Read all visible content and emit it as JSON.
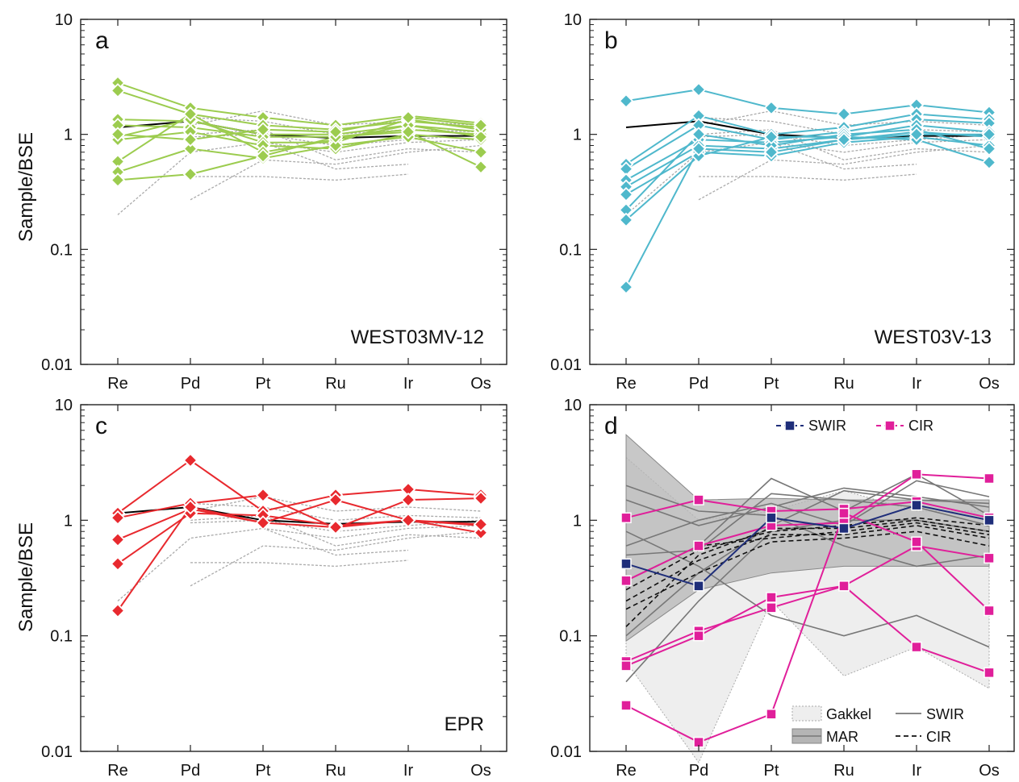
{
  "figure": {
    "y_axis_label": "Sample/BSE",
    "x_categories": [
      "Re",
      "Pd",
      "Pt",
      "Ru",
      "Ir",
      "Os"
    ],
    "y_tick_labels": [
      "10",
      "1",
      "0.1",
      "0.01"
    ]
  },
  "colors": {
    "a": "#9ccc4f",
    "b": "#4fb8cc",
    "c": "#e8292e",
    "swir": "#1f2e7a",
    "cir": "#e01f9a",
    "reference_grey": "#aaaaaa",
    "bse_line": "#000000"
  },
  "chart_data": [
    {
      "panel": "a",
      "letter": "a",
      "label": "WEST03MV-12",
      "type": "line",
      "x": [
        "Re",
        "Pd",
        "Pt",
        "Ru",
        "Ir",
        "Os"
      ],
      "yscale": "log",
      "ylim": [
        0.01,
        10
      ],
      "reference_line": [
        1.15,
        1.3,
        1.0,
        0.93,
        0.97,
        0.97
      ],
      "grey_reference": [
        [
          0.2,
          0.7,
          0.85,
          0.7,
          0.85,
          0.9
        ],
        [
          null,
          0.27,
          0.6,
          0.55,
          0.7,
          0.8
        ],
        [
          null,
          1.2,
          1.6,
          1.2,
          1.3,
          1.2
        ],
        [
          null,
          1.4,
          1.3,
          1.0,
          1.1,
          1.05
        ],
        [
          null,
          0.95,
          1.0,
          0.8,
          0.9,
          1.0
        ],
        [
          null,
          0.43,
          0.43,
          0.4,
          0.45,
          null
        ],
        [
          null,
          1.0,
          1.1,
          0.6,
          0.75,
          0.7
        ],
        [
          null,
          null,
          0.85,
          0.5,
          0.55,
          null
        ]
      ],
      "series": [
        {
          "values": [
            2.8,
            1.7,
            1.4,
            1.2,
            1.45,
            1.25
          ]
        },
        {
          "values": [
            2.4,
            1.5,
            1.2,
            1.1,
            1.3,
            1.15
          ]
        },
        {
          "values": [
            1.35,
            1.3,
            1.0,
            1.0,
            1.2,
            1.05
          ]
        },
        {
          "values": [
            1.2,
            1.15,
            0.95,
            0.95,
            1.1,
            1.0
          ]
        },
        {
          "values": [
            0.95,
            1.35,
            0.85,
            0.85,
            1.35,
            1.1
          ]
        },
        {
          "values": [
            0.9,
            1.05,
            0.8,
            0.75,
            1.0,
            0.9
          ]
        },
        {
          "values": [
            0.58,
            1.5,
            0.7,
            0.9,
            1.2,
            0.95
          ]
        },
        {
          "values": [
            0.47,
            0.75,
            0.62,
            0.8,
            0.95,
            0.7
          ]
        },
        {
          "values": [
            0.4,
            0.45,
            0.65,
            0.95,
            1.05,
            0.52
          ]
        },
        {
          "values": [
            1.0,
            0.9,
            1.1,
            1.05,
            1.4,
            1.2
          ]
        }
      ]
    },
    {
      "panel": "b",
      "letter": "b",
      "label": "WEST03V-13",
      "type": "line",
      "x": [
        "Re",
        "Pd",
        "Pt",
        "Ru",
        "Ir",
        "Os"
      ],
      "yscale": "log",
      "ylim": [
        0.01,
        10
      ],
      "reference_line": [
        1.15,
        1.3,
        1.0,
        0.93,
        0.97,
        0.97
      ],
      "grey_reference": [
        [
          0.2,
          0.7,
          0.85,
          0.7,
          0.85,
          0.9
        ],
        [
          null,
          0.27,
          0.6,
          0.55,
          0.7,
          0.8
        ],
        [
          null,
          1.2,
          1.6,
          1.2,
          1.3,
          1.2
        ],
        [
          null,
          1.4,
          1.3,
          1.0,
          1.1,
          1.05
        ],
        [
          null,
          0.95,
          1.0,
          0.8,
          0.9,
          1.0
        ],
        [
          null,
          0.43,
          0.43,
          0.4,
          0.45,
          null
        ],
        [
          null,
          1.0,
          1.1,
          0.6,
          0.75,
          0.7
        ],
        [
          null,
          null,
          0.85,
          0.5,
          0.55,
          null
        ]
      ],
      "series": [
        {
          "values": [
            1.95,
            2.45,
            1.7,
            1.5,
            1.8,
            1.55
          ]
        },
        {
          "values": [
            0.55,
            1.45,
            1.0,
            1.15,
            1.5,
            1.35
          ]
        },
        {
          "values": [
            0.5,
            1.2,
            0.9,
            1.05,
            1.35,
            1.25
          ]
        },
        {
          "values": [
            0.4,
            0.9,
            0.85,
            0.95,
            1.2,
            1.05
          ]
        },
        {
          "values": [
            0.35,
            0.8,
            0.75,
            0.9,
            1.05,
            0.95
          ]
        },
        {
          "values": [
            0.3,
            0.7,
            0.65,
            0.85,
            0.95,
            0.8
          ]
        },
        {
          "values": [
            0.22,
            1.0,
            0.8,
            1.0,
            1.1,
            0.75
          ]
        },
        {
          "values": [
            0.18,
            0.65,
            0.95,
            0.95,
            0.9,
            0.57
          ]
        },
        {
          "values": [
            0.047,
            0.75,
            0.7,
            0.9,
            1.0,
            1.0
          ]
        }
      ]
    },
    {
      "panel": "c",
      "letter": "c",
      "label": "EPR",
      "type": "line",
      "x": [
        "Re",
        "Pd",
        "Pt",
        "Ru",
        "Ir",
        "Os"
      ],
      "yscale": "log",
      "ylim": [
        0.01,
        10
      ],
      "reference_line": [
        1.15,
        1.3,
        1.0,
        0.93,
        0.97,
        0.97
      ],
      "grey_reference": [
        [
          0.2,
          0.7,
          0.85,
          0.7,
          0.85,
          0.9
        ],
        [
          null,
          0.27,
          0.6,
          0.55,
          0.7,
          0.8
        ],
        [
          null,
          1.2,
          1.6,
          1.2,
          1.3,
          1.2
        ],
        [
          null,
          1.4,
          1.3,
          1.0,
          1.1,
          1.05
        ],
        [
          null,
          0.95,
          1.0,
          0.8,
          0.9,
          1.0
        ],
        [
          null,
          0.43,
          0.43,
          0.4,
          0.45,
          null
        ],
        [
          null,
          1.0,
          1.1,
          0.6,
          0.75,
          0.7
        ],
        [
          null,
          null,
          0.85,
          0.5,
          0.55,
          null
        ]
      ],
      "series": [
        {
          "values": [
            1.15,
            3.3,
            1.2,
            1.65,
            1.85,
            1.65
          ]
        },
        {
          "values": [
            1.05,
            1.4,
            1.65,
            0.85,
            1.5,
            1.55
          ]
        },
        {
          "values": [
            0.68,
            1.25,
            0.95,
            1.5,
            1.0,
            0.9
          ]
        },
        {
          "values": [
            0.42,
            1.15,
            1.1,
            0.9,
            1.0,
            0.78
          ]
        },
        {
          "values": [
            0.165,
            1.3,
            0.95,
            0.87,
            1.0,
            0.92
          ]
        }
      ]
    },
    {
      "panel": "d",
      "letter": "d",
      "type": "line",
      "x": [
        "Re",
        "Pd",
        "Pt",
        "Ru",
        "Ir",
        "Os"
      ],
      "yscale": "log",
      "ylim": [
        0.01,
        10
      ],
      "top_legend": [
        {
          "name": "SWIR",
          "style": "dashed-square"
        },
        {
          "name": "CIR",
          "style": "dashed-square"
        }
      ],
      "bottom_legend": [
        {
          "name": "Gakkel",
          "style": "light-fill"
        },
        {
          "name": "SWIR",
          "style": "solid-line"
        },
        {
          "name": "MAR",
          "style": "grey-fill"
        },
        {
          "name": "CIR",
          "style": "dashed-line"
        }
      ],
      "mar_band": {
        "upper": [
          5.5,
          1.5,
          1.55,
          1.5,
          1.5,
          1.5
        ],
        "lower": [
          0.09,
          0.25,
          0.35,
          0.4,
          0.4,
          0.4
        ]
      },
      "gakkel_band": {
        "upper": [
          3.5,
          1.0,
          1.2,
          1.8,
          1.2,
          1.2
        ],
        "lower": [
          0.06,
          0.008,
          0.2,
          0.045,
          0.08,
          0.035
        ]
      },
      "swir_grey_lines": [
        [
          0.04,
          0.2,
          0.8,
          1.0,
          1.0,
          0.8
        ],
        [
          0.3,
          0.6,
          2.3,
          1.2,
          2.5,
          1.1
        ],
        [
          0.5,
          0.55,
          1.7,
          1.5,
          1.3,
          0.9
        ],
        [
          0.1,
          0.35,
          0.9,
          1.8,
          1.5,
          1.4
        ],
        [
          2.0,
          1.2,
          1.1,
          0.6,
          0.4,
          0.5
        ],
        [
          0.8,
          0.4,
          0.15,
          0.1,
          0.15,
          0.08
        ],
        [
          1.5,
          0.9,
          1.3,
          1.9,
          1.6,
          1.3
        ],
        [
          0.6,
          1.0,
          1.4,
          0.9,
          2.2,
          1.6
        ]
      ],
      "cir_black_dashed": [
        [
          0.12,
          0.5,
          0.85,
          0.85,
          1.0,
          0.8
        ],
        [
          0.2,
          0.45,
          0.75,
          0.75,
          0.9,
          0.7
        ],
        [
          0.25,
          0.55,
          0.8,
          0.9,
          1.05,
          0.9
        ],
        [
          0.3,
          0.6,
          0.7,
          0.8,
          0.95,
          0.75
        ],
        [
          0.17,
          0.35,
          0.65,
          0.7,
          0.8,
          0.6
        ]
      ],
      "swir_series": [
        {
          "values": [
            0.42,
            0.27,
            1.05,
            0.85,
            1.35,
            1.0
          ]
        }
      ],
      "cir_series": [
        {
          "values": [
            1.05,
            1.5,
            1.2,
            1.25,
            1.45,
            1.05
          ]
        },
        {
          "values": [
            0.3,
            0.6,
            0.9,
            0.95,
            2.5,
            2.3
          ]
        },
        {
          "values": [
            0.06,
            0.11,
            0.175,
            0.27,
            0.6,
            0.47
          ]
        },
        {
          "values": [
            0.055,
            0.1,
            0.215,
            0.27,
            0.08,
            0.048
          ]
        },
        {
          "values": [
            0.025,
            0.012,
            0.021,
            1.15,
            0.65,
            0.165
          ]
        }
      ]
    }
  ]
}
